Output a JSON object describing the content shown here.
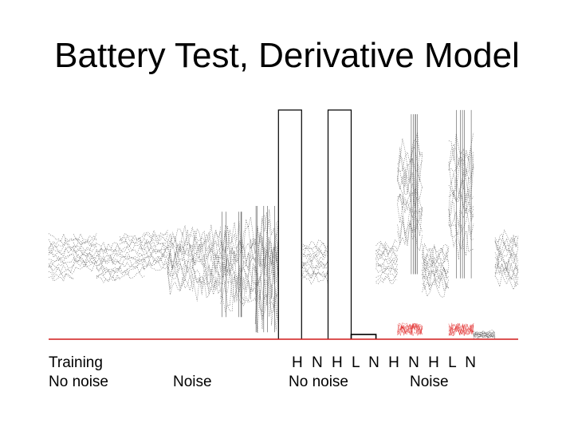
{
  "slide": {
    "title": "Battery Test, Derivative Model"
  },
  "captions": {
    "training_line1": "Training",
    "training_line2": "No noise",
    "noise": "Noise",
    "codes_line": "H N H L N H N H L N",
    "no_noise": "No noise",
    "noise2": "Noise"
  },
  "chart_data": {
    "type": "line",
    "title": "",
    "xlabel": "",
    "ylabel": "",
    "ylim": [
      0,
      1
    ],
    "segments": [
      {
        "group": "Training",
        "code": "",
        "level": 0.35,
        "spread": 0.17,
        "wiggle": 0.02,
        "color": "#555555"
      },
      {
        "group": "Training",
        "code": "",
        "level": 0.37,
        "spread": 0.13,
        "wiggle": 0.02,
        "color": "#555555"
      },
      {
        "group": "Training",
        "code": "",
        "level": 0.33,
        "spread": 0.14,
        "wiggle": 0.02,
        "color": "#555555"
      },
      {
        "group": "Training",
        "code": "",
        "level": 0.36,
        "spread": 0.16,
        "wiggle": 0.02,
        "color": "#555555"
      },
      {
        "group": "Training",
        "code": "",
        "level": 0.38,
        "spread": 0.14,
        "wiggle": 0.02,
        "color": "#555555"
      },
      {
        "group": "Noise",
        "code": "",
        "level": 0.34,
        "spread": 0.2,
        "wiggle": 0.05,
        "color": "#555555"
      },
      {
        "group": "Noise",
        "code": "",
        "level": 0.33,
        "spread": 0.22,
        "wiggle": 0.06,
        "color": "#555555"
      },
      {
        "group": "Noise",
        "code": "",
        "level": 0.32,
        "spread": 0.25,
        "wiggle": 0.08,
        "color": "#555555"
      },
      {
        "group": "Noise",
        "code": "",
        "level": 0.3,
        "spread": 0.3,
        "wiggle": 0.14,
        "color": "#555555"
      },
      {
        "group": "Battery no noise",
        "code": "H",
        "level": 0.98,
        "spread": 0.0,
        "wiggle": 0.0,
        "color": "#000000"
      },
      {
        "group": "Battery no noise",
        "code": "N",
        "level": 0.33,
        "spread": 0.15,
        "wiggle": 0.02,
        "color": "#555555"
      },
      {
        "group": "Battery no noise",
        "code": "H",
        "level": 0.98,
        "spread": 0.0,
        "wiggle": 0.0,
        "color": "#000000"
      },
      {
        "group": "Battery no noise",
        "code": "L",
        "level": 0.02,
        "spread": 0.0,
        "wiggle": 0.0,
        "color": "#000000"
      },
      {
        "group": "Battery no noise",
        "code": "N",
        "level": 0.33,
        "spread": 0.15,
        "wiggle": 0.02,
        "color": "#555555"
      },
      {
        "group": "Battery noise",
        "code": "H",
        "level": 0.62,
        "spread": 0.38,
        "wiggle": 0.08,
        "color": "#555555"
      },
      {
        "group": "Battery noise",
        "code": "N",
        "level": 0.3,
        "spread": 0.16,
        "wiggle": 0.04,
        "color": "#555555"
      },
      {
        "group": "Battery noise",
        "code": "H",
        "level": 0.62,
        "spread": 0.4,
        "wiggle": 0.08,
        "color": "#555555"
      },
      {
        "group": "Battery noise",
        "code": "L",
        "level": 0.02,
        "spread": 0.02,
        "wiggle": 0.01,
        "color": "#555555"
      },
      {
        "group": "Battery noise",
        "code": "N",
        "level": 0.34,
        "spread": 0.18,
        "wiggle": 0.04,
        "color": "#555555"
      }
    ],
    "reference": {
      "level": 0.0,
      "color": "#d11a1a"
    },
    "noise_floor": [
      {
        "segment": 14,
        "level": 0.07,
        "color": "#e02020"
      },
      {
        "segment": 16,
        "level": 0.07,
        "color": "#e02020"
      }
    ],
    "segment_widths": [
      30,
      28,
      28,
      30,
      28,
      30,
      34,
      42,
      28,
      28,
      32,
      28,
      30,
      26,
      30,
      32,
      30,
      26,
      28
    ],
    "grid": false,
    "legend": "none"
  },
  "colors": {
    "background": "#ffffff",
    "text": "#000000",
    "reference_line": "#d11a1a"
  }
}
